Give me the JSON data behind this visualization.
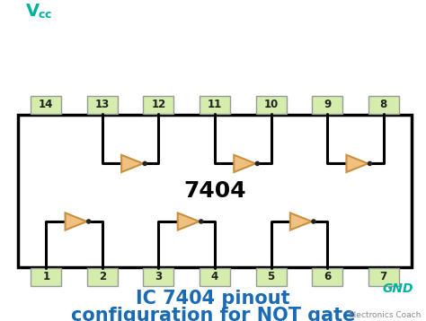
{
  "bg_color": "#ffffff",
  "chip_color": "#ffffff",
  "chip_border_color": "#000000",
  "pin_box_color": "#d4edac",
  "pin_border_color": "#999999",
  "gate_fill_color": "#f0c080",
  "gate_edge_color": "#c89040",
  "wire_color": "#000000",
  "title_color": "#1a6ab5",
  "vcc_color": "#00b0a0",
  "gnd_color": "#00b0a0",
  "chip_label": "7404",
  "chip_label_color": "#000000",
  "chip_label_fontsize": 18,
  "title_text_line1": "IC 7404 pinout",
  "title_text_line2": "configuration for NOT gate",
  "title_fontsize": 15,
  "watermark": "Electronics Coach",
  "watermark_color": "#888888",
  "top_pins": [
    14,
    13,
    12,
    11,
    10,
    9,
    8
  ],
  "bottom_pins": [
    1,
    2,
    3,
    4,
    5,
    6,
    7
  ],
  "gnd_label": "GND",
  "dot_color": "#222222"
}
